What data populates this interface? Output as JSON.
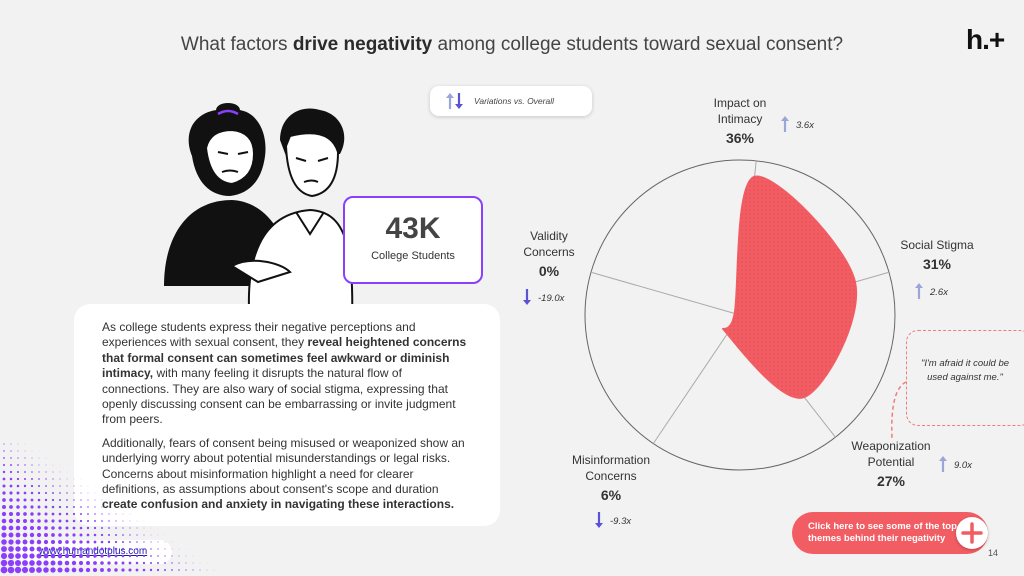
{
  "header": {
    "title_before": "What factors ",
    "title_bold": "drive negativity",
    "title_after": " among college students toward sexual consent?",
    "logo": "h.+"
  },
  "legend": {
    "label": "Variations vs. Overall",
    "icon": "up-down-arrows-icon"
  },
  "stat": {
    "value": "43K",
    "label": "College Students"
  },
  "body": {
    "p1_a": "As college students express their negative perceptions and experiences with sexual consent, they ",
    "p1_b": "reveal heightened concerns that formal consent can sometimes feel awkward or diminish intimacy,",
    "p1_c": " with many feeling it disrupts the natural flow of connections. They are also wary of social stigma, expressing that openly discussing consent can be embarrassing or invite judgment from peers.",
    "p2_a": "Additionally, fears of consent being misused or weaponized show an underlying worry about potential misunderstandings or legal risks. Concerns about misinformation highlight a need for clearer definitions, as assumptions about consent's scope and duration ",
    "p2_b": "create confusion and anxiety in navigating these interactions."
  },
  "footer": {
    "url": "www.humandotplus.com",
    "page": "14"
  },
  "quote": "\"I'm afraid it could be used against me.\"",
  "cta": {
    "line1": "Click here to see some of the top",
    "line2": "themes behind their negativity"
  },
  "colors": {
    "accent": "#f25d63",
    "purple": "#8a3ffc",
    "arrow": "#5b52d6",
    "arrow_light": "#9aa6d8"
  },
  "chart_data": {
    "type": "radar",
    "max": 40,
    "axes": [
      {
        "name_lines": [
          "Impact on",
          "Intimacy"
        ],
        "value": 36,
        "pct_label": "36%",
        "variation": "3.6x",
        "direction": "up"
      },
      {
        "name_lines": [
          "Social Stigma"
        ],
        "value": 31,
        "pct_label": "31%",
        "variation": "2.6x",
        "direction": "up"
      },
      {
        "name_lines": [
          "Weaponization",
          "Potential"
        ],
        "value": 27,
        "pct_label": "27%",
        "variation": "9.0x",
        "direction": "up"
      },
      {
        "name_lines": [
          "Misinformation",
          "Concerns"
        ],
        "value": 6,
        "pct_label": "6%",
        "variation": "-9.3x",
        "direction": "down"
      },
      {
        "name_lines": [
          "Validity",
          "Concerns"
        ],
        "value": 0,
        "pct_label": "0%",
        "variation": "-19.0x",
        "direction": "down"
      }
    ]
  }
}
